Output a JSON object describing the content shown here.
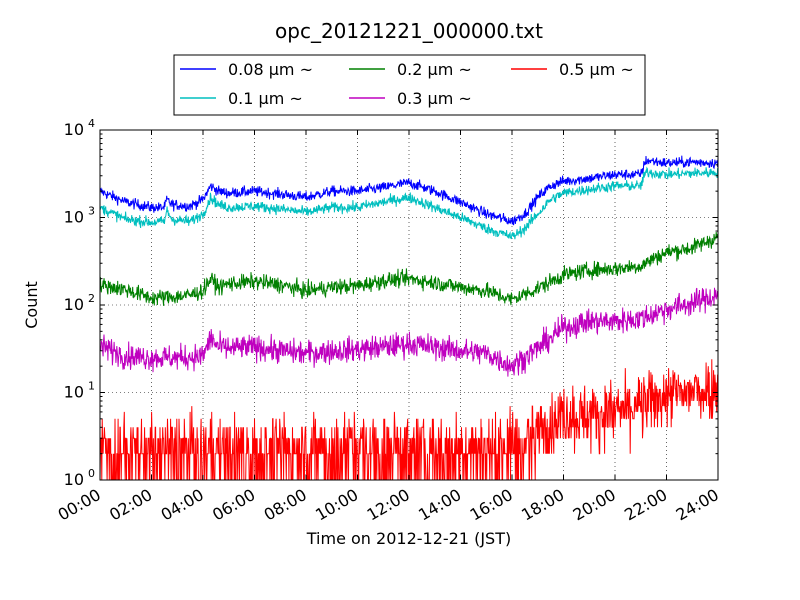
{
  "chart_data": {
    "type": "line",
    "title": "opc_20121221_000000.txt",
    "xlabel": "Time on 2012-12-21 (JST)",
    "ylabel": "Count",
    "x_ticks": [
      "00:00",
      "02:00",
      "04:00",
      "06:00",
      "08:00",
      "10:00",
      "12:00",
      "14:00",
      "16:00",
      "18:00",
      "20:00",
      "22:00",
      "24:00"
    ],
    "xlim": [
      0,
      24
    ],
    "y_scale": "log",
    "ylim": [
      1,
      10000
    ],
    "y_ticks": [
      {
        "value": 1,
        "base": "10",
        "exp": "0"
      },
      {
        "value": 10,
        "base": "10",
        "exp": "1"
      },
      {
        "value": 100,
        "base": "10",
        "exp": "2"
      },
      {
        "value": 1000,
        "base": "10",
        "exp": "3"
      },
      {
        "value": 10000,
        "base": "10",
        "exp": "4"
      }
    ],
    "grid": true,
    "legend_position": "top-center",
    "series": [
      {
        "name": "0.08 μm ~",
        "color": "#0000ff",
        "noise": 0.06,
        "points": [
          [
            0,
            2000
          ],
          [
            1,
            1500
          ],
          [
            2,
            1300
          ],
          [
            2.5,
            1300
          ],
          [
            2.6,
            1600
          ],
          [
            2.8,
            1400
          ],
          [
            3.5,
            1350
          ],
          [
            4,
            1600
          ],
          [
            4.3,
            2300
          ],
          [
            4.6,
            2000
          ],
          [
            5,
            1900
          ],
          [
            6,
            2000
          ],
          [
            7,
            1850
          ],
          [
            8,
            1700
          ],
          [
            9,
            2000
          ],
          [
            10,
            2000
          ],
          [
            11,
            2200
          ],
          [
            12,
            2500
          ],
          [
            13,
            2000
          ],
          [
            14,
            1500
          ],
          [
            15,
            1100
          ],
          [
            16,
            900
          ],
          [
            16.5,
            1100
          ],
          [
            17,
            1700
          ],
          [
            17.5,
            2300
          ],
          [
            18,
            2600
          ],
          [
            19,
            2800
          ],
          [
            20,
            3100
          ],
          [
            21,
            3100
          ],
          [
            21.2,
            4500
          ],
          [
            22,
            4200
          ],
          [
            23,
            4300
          ],
          [
            24,
            4200
          ]
        ]
      },
      {
        "name": "0.1 μm ~",
        "color": "#00bfbf",
        "noise": 0.06,
        "points": [
          [
            0,
            1300
          ],
          [
            1,
            950
          ],
          [
            2,
            880
          ],
          [
            2.5,
            900
          ],
          [
            2.6,
            1200
          ],
          [
            2.8,
            950
          ],
          [
            3.5,
            900
          ],
          [
            4,
            1100
          ],
          [
            4.3,
            1700
          ],
          [
            4.6,
            1400
          ],
          [
            5,
            1300
          ],
          [
            6,
            1350
          ],
          [
            7,
            1250
          ],
          [
            8,
            1150
          ],
          [
            9,
            1300
          ],
          [
            10,
            1300
          ],
          [
            11,
            1500
          ],
          [
            12,
            1700
          ],
          [
            13,
            1300
          ],
          [
            14,
            1000
          ],
          [
            15,
            750
          ],
          [
            16,
            600
          ],
          [
            16.5,
            750
          ],
          [
            17,
            1100
          ],
          [
            17.5,
            1600
          ],
          [
            18,
            1900
          ],
          [
            19,
            2100
          ],
          [
            20,
            2300
          ],
          [
            21,
            2300
          ],
          [
            21.2,
            3300
          ],
          [
            22,
            3100
          ],
          [
            23,
            3200
          ],
          [
            24,
            3300
          ]
        ]
      },
      {
        "name": "0.2 μm ~",
        "color": "#008000",
        "noise": 0.09,
        "points": [
          [
            0,
            170
          ],
          [
            1,
            150
          ],
          [
            2,
            120
          ],
          [
            3,
            125
          ],
          [
            3.5,
            130
          ],
          [
            4,
            145
          ],
          [
            4.3,
            200
          ],
          [
            4.6,
            160
          ],
          [
            5,
            175
          ],
          [
            6,
            185
          ],
          [
            7,
            170
          ],
          [
            8,
            145
          ],
          [
            9,
            160
          ],
          [
            10,
            165
          ],
          [
            11,
            190
          ],
          [
            12,
            200
          ],
          [
            13,
            180
          ],
          [
            14,
            160
          ],
          [
            15,
            145
          ],
          [
            16,
            115
          ],
          [
            17,
            155
          ],
          [
            18,
            220
          ],
          [
            19,
            250
          ],
          [
            20,
            260
          ],
          [
            21,
            280
          ],
          [
            21.5,
            340
          ],
          [
            22,
            400
          ],
          [
            23,
            450
          ],
          [
            24,
            600
          ]
        ]
      },
      {
        "name": "0.3 μm ~",
        "color": "#bf00bf",
        "noise": 0.14,
        "points": [
          [
            0,
            34
          ],
          [
            1,
            26
          ],
          [
            2,
            25
          ],
          [
            3,
            25
          ],
          [
            4,
            26
          ],
          [
            4.3,
            42
          ],
          [
            4.6,
            33
          ],
          [
            5,
            32
          ],
          [
            6,
            33
          ],
          [
            7,
            30
          ],
          [
            8,
            28
          ],
          [
            9,
            30
          ],
          [
            10,
            31
          ],
          [
            11,
            33
          ],
          [
            12,
            36
          ],
          [
            13,
            33
          ],
          [
            14,
            30
          ],
          [
            15,
            28
          ],
          [
            16,
            20
          ],
          [
            17,
            32
          ],
          [
            18,
            55
          ],
          [
            19,
            65
          ],
          [
            20,
            65
          ],
          [
            21,
            70
          ],
          [
            22,
            90
          ],
          [
            23,
            105
          ],
          [
            24,
            130
          ]
        ]
      },
      {
        "name": "0.5 μm ~",
        "color": "#ff0000",
        "noise": 0.35,
        "points": [
          [
            0,
            2.5
          ],
          [
            4,
            2.5
          ],
          [
            8,
            2.5
          ],
          [
            12,
            2.5
          ],
          [
            16,
            2.6
          ],
          [
            17,
            3.5
          ],
          [
            18,
            5.5
          ],
          [
            19,
            5.5
          ],
          [
            20,
            6
          ],
          [
            21,
            7
          ],
          [
            22,
            9
          ],
          [
            23,
            10
          ],
          [
            24,
            12
          ]
        ]
      }
    ]
  }
}
